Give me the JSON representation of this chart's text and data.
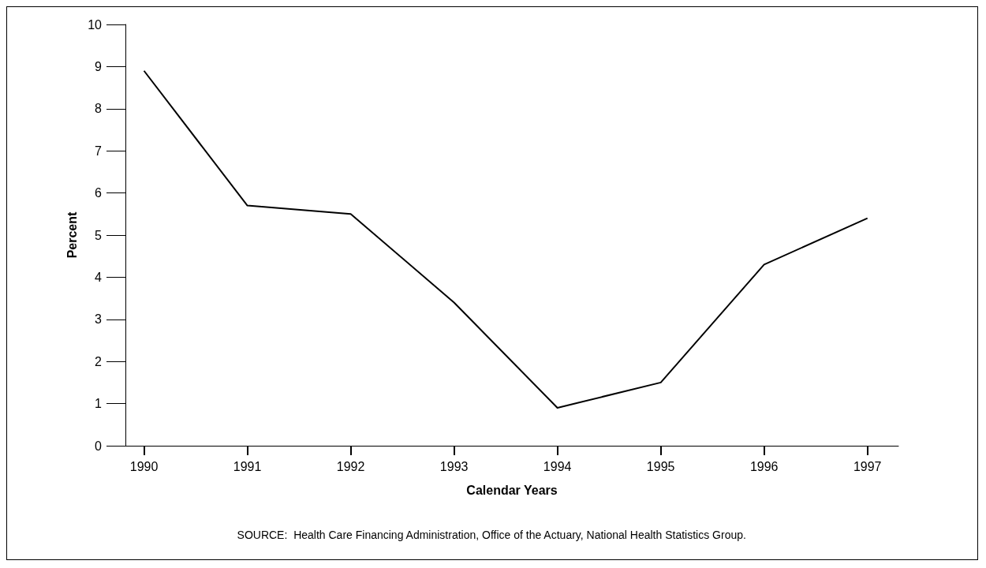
{
  "chart_data": {
    "type": "line",
    "xlabel": "Calendar Years",
    "ylabel": "Percent",
    "x": [
      1990,
      1991,
      1992,
      1993,
      1994,
      1995,
      1996,
      1997
    ],
    "values": [
      8.9,
      5.7,
      5.5,
      3.4,
      0.9,
      1.5,
      4.3,
      5.4
    ],
    "color": "#000000",
    "marker": "none",
    "line_style": "solid",
    "grid": false,
    "xlim": [
      1989.82,
      1997.3
    ],
    "xticks": [
      1990,
      1991,
      1992,
      1993,
      1994,
      1995,
      1996,
      1997
    ],
    "ylim": [
      0,
      10
    ],
    "yticks": [
      0,
      1,
      2,
      3,
      4,
      5,
      6,
      7,
      8,
      9,
      10
    ],
    "annotations": [
      "SOURCE:  Health Care Financing Administration, Office of the Actuary, National Health Statistics Group."
    ]
  }
}
